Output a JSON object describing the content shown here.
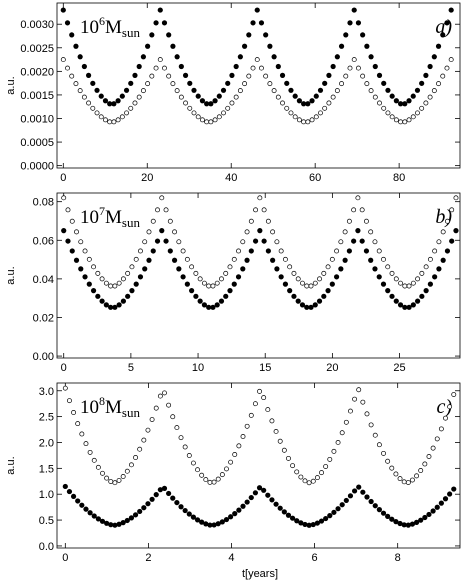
{
  "xlabel": "t[years]",
  "chart_data": [
    {
      "type": "scatter",
      "panel_label": "a)",
      "mass": {
        "base": "10",
        "exp": "6",
        "unit": "M",
        "sub": "sun"
      },
      "ylabel": "a.u.",
      "xlim": [
        -1.5,
        94.5
      ],
      "ylim": [
        -5e-05,
        0.00345
      ],
      "xticks": [
        0,
        20,
        40,
        60,
        80
      ],
      "xtick_labels": [
        "0",
        "20",
        "40",
        "60",
        "80"
      ],
      "yticks": [
        0,
        0.0005,
        0.001,
        0.0015,
        0.002,
        0.0025,
        0.003
      ],
      "ytick_labels": [
        "0.0000",
        "0.0005",
        "0.0010",
        "0.0015",
        "0.0020",
        "0.0025",
        "0.0030"
      ],
      "series": [
        {
          "marker": "filled",
          "period": 23.1,
          "t0": 0,
          "n": 93,
          "tmax": 92.4,
          "min": 0.0013,
          "max": 0.0033
        },
        {
          "marker": "open",
          "period": 23.1,
          "t0": 0,
          "n": 93,
          "tmax": 92.4,
          "min": 0.00092,
          "max": 0.00225
        }
      ]
    },
    {
      "type": "scatter",
      "panel_label": "b)",
      "mass": {
        "base": "10",
        "exp": "7",
        "unit": "M",
        "sub": "sun"
      },
      "ylabel": "a.u.",
      "xlim": [
        -0.5,
        29.5
      ],
      "ylim": [
        -0.001,
        0.0845
      ],
      "xticks": [
        0,
        5,
        10,
        15,
        20,
        25
      ],
      "xtick_labels": [
        "0",
        "5",
        "10",
        "15",
        "20",
        "25"
      ],
      "yticks": [
        0,
        0.02,
        0.04,
        0.06,
        0.08
      ],
      "ytick_labels": [
        "0.00",
        "0.02",
        "0.04",
        "0.06",
        "0.08"
      ],
      "series": [
        {
          "marker": "filled",
          "period": 7.3,
          "t0": 0,
          "n": 93,
          "tmax": 29.2,
          "min": 0.025,
          "max": 0.065
        },
        {
          "marker": "open",
          "period": 7.3,
          "t0": 0,
          "n": 93,
          "tmax": 29.2,
          "min": 0.036,
          "max": 0.082
        }
      ]
    },
    {
      "type": "scatter",
      "panel_label": "c)",
      "mass": {
        "base": "10",
        "exp": "8",
        "unit": "M",
        "sub": "sun"
      },
      "ylabel": "a.u.",
      "xlim": [
        -0.2,
        9.5
      ],
      "ylim": [
        -0.04,
        3.15
      ],
      "xticks": [
        0,
        2,
        4,
        6,
        8
      ],
      "xtick_labels": [
        "0",
        "2",
        "4",
        "6",
        "8"
      ],
      "yticks": [
        0,
        0.5,
        1,
        1.5,
        2,
        2.5,
        3
      ],
      "ytick_labels": [
        "0.0",
        "0.5",
        "1.0",
        "1.5",
        "2.0",
        "2.5",
        "3.0"
      ],
      "series": [
        {
          "marker": "filled",
          "period": 2.35,
          "t0": 0,
          "n": 95,
          "tmax": 9.35,
          "min": 0.4,
          "max": 1.15
        },
        {
          "marker": "open",
          "period": 2.35,
          "t0": 0,
          "n": 95,
          "tmax": 9.35,
          "min": 1.22,
          "max": 3.05
        }
      ]
    }
  ]
}
